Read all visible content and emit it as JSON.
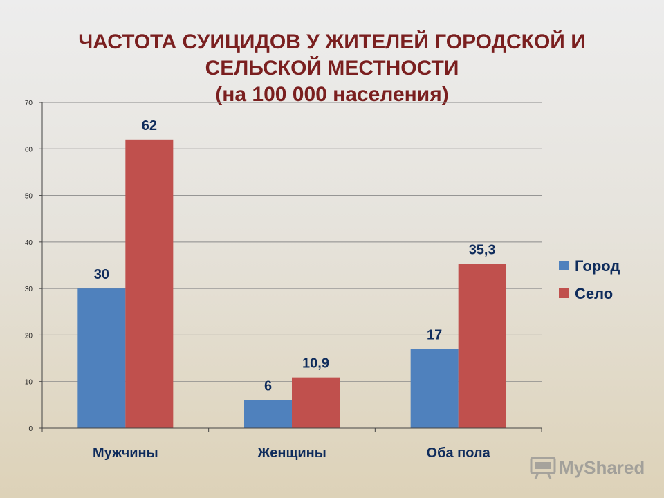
{
  "chart_data": {
    "type": "bar",
    "title": [
      "ЧАСТОТА СУИЦИДОВ У ЖИТЕЛЕЙ ГОРОДСКОЙ И",
      "СЕЛЬСКОЙ МЕСТНОСТИ",
      "(на 100 000 населения)"
    ],
    "categories": [
      "Мужчины",
      "Женщины",
      "Оба пола"
    ],
    "series": [
      {
        "name": "Город",
        "values": [
          30,
          6,
          17
        ],
        "labels": [
          "30",
          "6",
          "17"
        ],
        "color": "#4f81bd"
      },
      {
        "name": "Село",
        "values": [
          62,
          10.9,
          35.3
        ],
        "labels": [
          "62",
          "10,9",
          "35,3"
        ],
        "color": "#c0504d"
      }
    ],
    "ylim": [
      0,
      70
    ],
    "yticks": [
      0,
      10,
      20,
      30,
      40,
      50,
      60,
      70
    ],
    "grid": true,
    "legend": "right"
  },
  "watermark": {
    "text": "MyShared",
    "icon": "presentation-board-icon"
  }
}
